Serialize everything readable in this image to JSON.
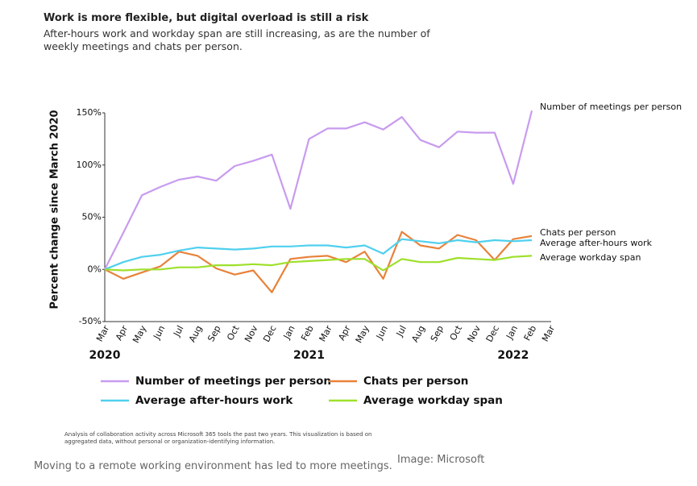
{
  "chart_data": {
    "type": "line",
    "title": "Work is more flexible, but digital overload is still a risk",
    "subtitle": "After-hours work and workday span are still increasing, as are the number of weekly meetings and chats per person.",
    "ylabel": "Percent change since March 2020",
    "categories": [
      "Mar",
      "Apr",
      "May",
      "Jun",
      "Jul",
      "Aug",
      "Sep",
      "Oct",
      "Nov",
      "Dec",
      "Jan",
      "Feb",
      "Mar",
      "Apr",
      "May",
      "Jun",
      "Jul",
      "Aug",
      "Sep",
      "Oct",
      "Nov",
      "Dec",
      "Jan",
      "Feb",
      "Mar"
    ],
    "years": [
      "2020",
      "2021",
      "2022"
    ],
    "ylim": [
      -50,
      150
    ],
    "yticks": [
      {
        "value": -50,
        "label": "-50%"
      },
      {
        "value": 0,
        "label": "0%"
      },
      {
        "value": 50,
        "label": "50%"
      },
      {
        "value": 100,
        "label": "100%"
      },
      {
        "value": 150,
        "label": "150%"
      }
    ],
    "series": [
      {
        "name": "Number of meetings per person",
        "color": "#c89bef",
        "values": [
          0,
          35,
          71,
          79,
          86,
          89,
          85,
          99,
          104,
          110,
          58,
          125,
          135,
          135,
          141,
          134,
          146,
          124,
          117,
          132,
          131,
          131,
          82,
          152,
          null
        ]
      },
      {
        "name": "Chats per person",
        "color": "#e8823a",
        "values": [
          0,
          -9,
          -3,
          3,
          17,
          13,
          1,
          -5,
          -1,
          -22,
          10,
          12,
          13,
          7,
          17,
          -9,
          36,
          23,
          20,
          33,
          28,
          9,
          29,
          32,
          null
        ]
      },
      {
        "name": "Average after-hours work",
        "color": "#4fd0ee",
        "values": [
          0,
          7,
          12,
          14,
          18,
          21,
          20,
          19,
          20,
          22,
          22,
          23,
          23,
          21,
          23,
          15,
          29,
          27,
          25,
          28,
          26,
          28,
          27,
          28,
          null
        ]
      },
      {
        "name": "Average workday span",
        "color": "#9ee02b",
        "values": [
          0,
          -1,
          0,
          0,
          2,
          2,
          4,
          4,
          5,
          4,
          7,
          8,
          9,
          10,
          10,
          -1,
          10,
          7,
          7,
          11,
          10,
          9,
          12,
          13,
          null
        ]
      }
    ]
  },
  "footnote": "Analysis of collaboration activity across Microsoft 365 tools the past two years. This visualization is based on aggregated data, without personal or organization-identifying information.",
  "caption": "Moving to a remote working environment has led to more meetings.",
  "credit": "Image: Microsoft"
}
